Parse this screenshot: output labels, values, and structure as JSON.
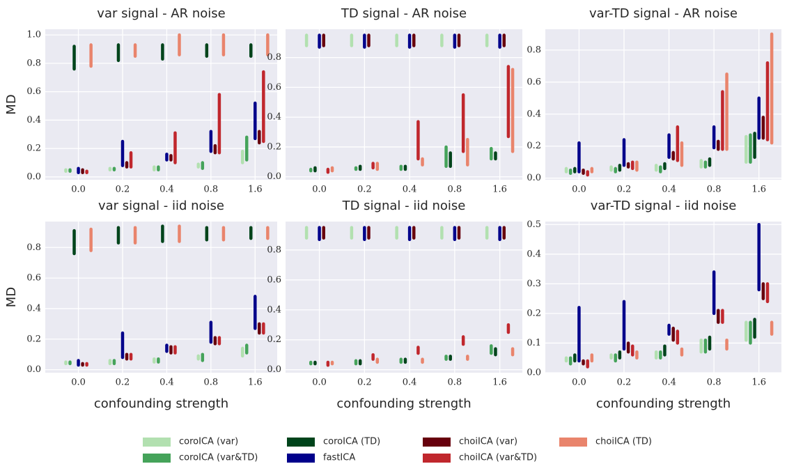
{
  "chart_data": [
    {
      "type": "range",
      "title": "var signal - AR noise",
      "ylabel": "MD",
      "categories": [
        "0.0",
        "0.2",
        "0.4",
        "0.8",
        "1.6"
      ],
      "ylim": [
        -0.02,
        1.04
      ],
      "yticks": [
        {
          "value": 0,
          "label": "0.0"
        },
        0.2,
        0.4,
        0.6,
        0.8,
        {
          "value": 1,
          "label": "1.0"
        }
      ],
      "series": [
        {
          "name": "coroICA (var)",
          "color": "#b2e0b0",
          "low": [
            0.04,
            0.05,
            0.05,
            0.07,
            0.1
          ],
          "high": [
            0.05,
            0.06,
            0.07,
            0.09,
            0.18
          ]
        },
        {
          "name": "coroICA (var&TD)",
          "color": "#45a35a",
          "low": [
            0.04,
            0.05,
            0.05,
            0.06,
            0.12
          ],
          "high": [
            0.05,
            0.06,
            0.07,
            0.1,
            0.28
          ]
        },
        {
          "name": "coroICA (TD)",
          "color": "#00441b",
          "low": [
            0.76,
            0.82,
            0.83,
            0.85,
            0.85
          ],
          "high": [
            0.92,
            0.93,
            0.93,
            0.93,
            0.93
          ]
        },
        {
          "name": "fastICA",
          "color": "#00008b",
          "low": [
            0.03,
            0.08,
            0.12,
            0.18,
            0.27
          ],
          "high": [
            0.06,
            0.25,
            0.16,
            0.32,
            0.52
          ]
        },
        {
          "name": "choiICA (var)",
          "color": "#67000d",
          "low": [
            0.03,
            0.07,
            0.12,
            0.17,
            0.24
          ],
          "high": [
            0.05,
            0.1,
            0.15,
            0.22,
            0.32
          ]
        },
        {
          "name": "choiICA (var&TD)",
          "color": "#c0272d",
          "low": [
            0.03,
            0.07,
            0.1,
            0.17,
            0.25
          ],
          "high": [
            0.04,
            0.17,
            0.31,
            0.58,
            0.74
          ]
        },
        {
          "name": "choiICA (TD)",
          "color": "#e9846c",
          "low": [
            0.78,
            0.85,
            0.86,
            0.86,
            0.86
          ],
          "high": [
            0.93,
            0.93,
            1.0,
            1.0,
            1.0
          ]
        }
      ]
    },
    {
      "type": "range",
      "title": "TD signal - AR noise",
      "categories": [
        "0.0",
        "0.2",
        "0.4",
        "0.8",
        "1.6"
      ],
      "ylim": [
        -0.02,
        0.99
      ],
      "yticks": [
        {
          "value": 0,
          "label": "0.0"
        },
        0.2,
        0.4,
        0.6,
        0.8
      ],
      "series": [
        {
          "color": "#b2e0b0",
          "low": [
            0.88,
            0.88,
            0.88,
            0.88,
            0.88
          ],
          "high": [
            0.95,
            0.95,
            0.95,
            0.95,
            0.95
          ]
        },
        {
          "color": "#45a35a",
          "low": [
            0.04,
            0.05,
            0.05,
            0.07,
            0.12
          ],
          "high": [
            0.05,
            0.06,
            0.07,
            0.2,
            0.19
          ]
        },
        {
          "color": "#00441b",
          "low": [
            0.04,
            0.05,
            0.05,
            0.07,
            0.12
          ],
          "high": [
            0.06,
            0.07,
            0.07,
            0.16,
            0.16
          ]
        },
        {
          "color": "#00008b",
          "low": [
            0.87,
            0.87,
            0.87,
            0.87,
            0.87
          ],
          "high": [
            0.95,
            0.95,
            0.95,
            0.95,
            0.95
          ]
        },
        {
          "color": "#67000d",
          "low": [
            0.88,
            0.88,
            0.88,
            0.88,
            0.88
          ],
          "high": [
            0.95,
            0.95,
            0.95,
            0.95,
            0.95
          ]
        },
        {
          "color": "#c0272d",
          "low": [
            0.03,
            0.06,
            0.12,
            0.17,
            0.27
          ],
          "high": [
            0.05,
            0.09,
            0.37,
            0.55,
            0.74
          ]
        },
        {
          "color": "#e9846c",
          "low": [
            0.04,
            0.05,
            0.08,
            0.08,
            0.17
          ],
          "high": [
            0.06,
            0.09,
            0.12,
            0.25,
            0.72
          ]
        }
      ]
    },
    {
      "type": "range",
      "title": "var-TD signal - AR noise",
      "categories": [
        "0.0",
        "0.2",
        "0.4",
        "0.8",
        "1.6"
      ],
      "ylim": [
        -0.01,
        0.93
      ],
      "yticks": [
        {
          "value": 0,
          "label": "0.0"
        },
        0.2,
        0.4,
        0.6,
        0.8
      ],
      "series": [
        {
          "color": "#b2e0b0",
          "low": [
            0.04,
            0.05,
            0.05,
            0.07,
            0.1
          ],
          "high": [
            0.06,
            0.07,
            0.08,
            0.11,
            0.26
          ]
        },
        {
          "color": "#45a35a",
          "low": [
            0.03,
            0.04,
            0.04,
            0.07,
            0.1
          ],
          "high": [
            0.05,
            0.06,
            0.07,
            0.1,
            0.27
          ]
        },
        {
          "color": "#00441b",
          "low": [
            0.04,
            0.05,
            0.06,
            0.08,
            0.13
          ],
          "high": [
            0.06,
            0.08,
            0.09,
            0.12,
            0.28
          ]
        },
        {
          "color": "#00008b",
          "low": [
            0.04,
            0.08,
            0.13,
            0.19,
            0.25
          ],
          "high": [
            0.22,
            0.24,
            0.27,
            0.32,
            0.5
          ]
        },
        {
          "color": "#67000d",
          "low": [
            0.03,
            0.07,
            0.12,
            0.18,
            0.25
          ],
          "high": [
            0.05,
            0.09,
            0.16,
            0.23,
            0.38
          ]
        },
        {
          "color": "#c0272d",
          "low": [
            0.02,
            0.06,
            0.11,
            0.18,
            0.24
          ],
          "high": [
            0.04,
            0.1,
            0.32,
            0.54,
            0.72
          ]
        },
        {
          "color": "#e9846c",
          "low": [
            0.04,
            0.05,
            0.08,
            0.18,
            0.22
          ],
          "high": [
            0.06,
            0.1,
            0.22,
            0.65,
            0.9
          ]
        }
      ]
    },
    {
      "type": "range",
      "title": "var signal - iid noise",
      "ylabel": "MD",
      "xlabel": "confounding strength",
      "categories": [
        "0.0",
        "0.2",
        "0.4",
        "0.8",
        "1.6"
      ],
      "ylim": [
        -0.02,
        0.97
      ],
      "yticks": [
        {
          "value": 0,
          "label": "0.0"
        },
        0.2,
        0.4,
        0.6,
        0.8
      ],
      "series": [
        {
          "color": "#b2e0b0",
          "low": [
            0.04,
            0.04,
            0.05,
            0.07,
            0.09
          ],
          "high": [
            0.05,
            0.06,
            0.07,
            0.09,
            0.14
          ]
        },
        {
          "color": "#45a35a",
          "low": [
            0.04,
            0.04,
            0.05,
            0.06,
            0.11
          ],
          "high": [
            0.05,
            0.06,
            0.07,
            0.1,
            0.16
          ]
        },
        {
          "color": "#00441b",
          "low": [
            0.76,
            0.83,
            0.84,
            0.85,
            0.86
          ],
          "high": [
            0.91,
            0.93,
            0.94,
            0.93,
            0.93
          ]
        },
        {
          "color": "#00008b",
          "low": [
            0.03,
            0.08,
            0.12,
            0.18,
            0.27
          ],
          "high": [
            0.06,
            0.24,
            0.16,
            0.31,
            0.48
          ]
        },
        {
          "color": "#67000d",
          "low": [
            0.03,
            0.07,
            0.11,
            0.17,
            0.24
          ],
          "high": [
            0.04,
            0.1,
            0.15,
            0.21,
            0.3
          ]
        },
        {
          "color": "#c0272d",
          "low": [
            0.03,
            0.07,
            0.11,
            0.17,
            0.24
          ],
          "high": [
            0.04,
            0.1,
            0.15,
            0.21,
            0.3
          ]
        },
        {
          "color": "#e9846c",
          "low": [
            0.78,
            0.83,
            0.84,
            0.85,
            0.86
          ],
          "high": [
            0.92,
            0.93,
            0.94,
            0.93,
            0.93
          ]
        }
      ]
    },
    {
      "type": "range",
      "title": "TD signal - iid noise",
      "xlabel": "confounding strength",
      "categories": [
        "0.0",
        "0.2",
        "0.4",
        "0.8",
        "1.6"
      ],
      "ylim": [
        -0.02,
        0.99
      ],
      "yticks": [
        {
          "value": 0,
          "label": "0.0"
        },
        0.2,
        0.4,
        0.6,
        0.8
      ],
      "series": [
        {
          "color": "#b2e0b0",
          "low": [
            0.88,
            0.88,
            0.88,
            0.88,
            0.88
          ],
          "high": [
            0.95,
            0.95,
            0.95,
            0.95,
            0.95
          ]
        },
        {
          "color": "#45a35a",
          "low": [
            0.04,
            0.04,
            0.05,
            0.07,
            0.11
          ],
          "high": [
            0.05,
            0.06,
            0.07,
            0.09,
            0.16
          ]
        },
        {
          "color": "#00441b",
          "low": [
            0.04,
            0.04,
            0.05,
            0.07,
            0.1
          ],
          "high": [
            0.05,
            0.06,
            0.07,
            0.09,
            0.14
          ]
        },
        {
          "color": "#00008b",
          "low": [
            0.87,
            0.87,
            0.87,
            0.87,
            0.87
          ],
          "high": [
            0.95,
            0.95,
            0.95,
            0.95,
            0.95
          ]
        },
        {
          "color": "#67000d",
          "low": [
            0.88,
            0.88,
            0.88,
            0.88,
            0.88
          ],
          "high": [
            0.95,
            0.95,
            0.95,
            0.95,
            0.95
          ]
        },
        {
          "color": "#c0272d",
          "low": [
            0.03,
            0.07,
            0.11,
            0.17,
            0.25
          ],
          "high": [
            0.05,
            0.1,
            0.15,
            0.22,
            0.3
          ]
        },
        {
          "color": "#e9846c",
          "low": [
            0.04,
            0.05,
            0.05,
            0.07,
            0.1
          ],
          "high": [
            0.05,
            0.07,
            0.07,
            0.09,
            0.14
          ]
        }
      ]
    },
    {
      "type": "range",
      "title": "var-TD signal - iid noise",
      "xlabel": "confounding strength",
      "categories": [
        "0.0",
        "0.2",
        "0.4",
        "0.8",
        "1.6"
      ],
      "ylim": [
        0,
        0.51
      ],
      "yticks": [
        {
          "value": 0,
          "label": "0.0"
        },
        0.1,
        0.2,
        0.3,
        0.4,
        0.5
      ],
      "series": [
        {
          "color": "#b2e0b0",
          "low": [
            0.04,
            0.05,
            0.05,
            0.07,
            0.11
          ],
          "high": [
            0.05,
            0.06,
            0.07,
            0.11,
            0.17
          ]
        },
        {
          "color": "#45a35a",
          "low": [
            0.03,
            0.04,
            0.05,
            0.07,
            0.1
          ],
          "high": [
            0.05,
            0.06,
            0.07,
            0.11,
            0.17
          ]
        },
        {
          "color": "#00441b",
          "low": [
            0.04,
            0.05,
            0.06,
            0.08,
            0.12
          ],
          "high": [
            0.06,
            0.07,
            0.09,
            0.12,
            0.18
          ]
        },
        {
          "color": "#00008b",
          "low": [
            0.04,
            0.08,
            0.13,
            0.2,
            0.28
          ],
          "high": [
            0.22,
            0.24,
            0.16,
            0.34,
            0.5
          ]
        },
        {
          "color": "#67000d",
          "low": [
            0.03,
            0.07,
            0.11,
            0.17,
            0.25
          ],
          "high": [
            0.04,
            0.1,
            0.15,
            0.21,
            0.3
          ]
        },
        {
          "color": "#c0272d",
          "low": [
            0.02,
            0.06,
            0.1,
            0.17,
            0.24
          ],
          "high": [
            0.04,
            0.09,
            0.14,
            0.21,
            0.3
          ]
        },
        {
          "color": "#e9846c",
          "low": [
            0.04,
            0.05,
            0.06,
            0.08,
            0.13
          ],
          "high": [
            0.06,
            0.07,
            0.08,
            0.11,
            0.17
          ]
        }
      ]
    }
  ]
}
